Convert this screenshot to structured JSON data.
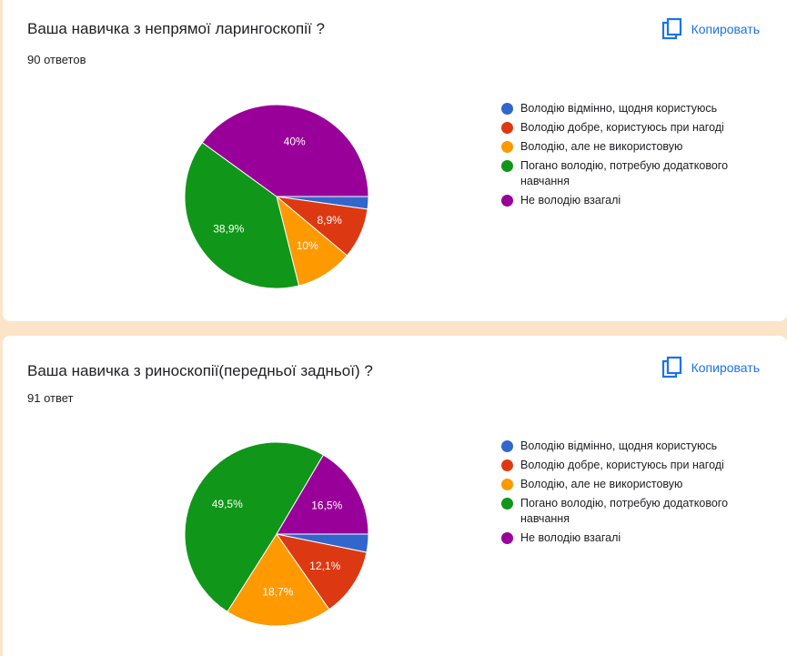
{
  "copy_label": "Копировать",
  "cards": [
    {
      "title": "Ваша навичка з непрямої ларингоскопії ?",
      "responses": "90 ответов"
    },
    {
      "title": "Ваша навичка з риноскопії(передньої задньої) ?",
      "responses": "91 ответ"
    }
  ],
  "chart_data": [
    {
      "type": "pie",
      "categories": [
        "Володію відмінно, щодня користуюсь",
        "Володію добре, користуюсь при нагоді",
        "Володію, але не використовую",
        "Погано володію, потребую додаткового навчання",
        "Не володію взагалі"
      ],
      "values": [
        2.2,
        8.9,
        10,
        38.9,
        40
      ],
      "data_labels": [
        "",
        "8,9%",
        "10%",
        "38,9%",
        "40%"
      ],
      "colors": [
        "#3366cc",
        "#dc3912",
        "#ff9900",
        "#109618",
        "#990099"
      ],
      "legend_position": "right"
    },
    {
      "type": "pie",
      "categories": [
        "Володію відмінно, щодня користуюсь",
        "Володію добре, користуюсь при нагоді",
        "Володію, але не використовую",
        "Погано володію, потребую додаткового навчання",
        "Не володію взагалі"
      ],
      "values": [
        3.2,
        12.1,
        18.7,
        49.5,
        16.5
      ],
      "data_labels": [
        "",
        "12,1%",
        "18,7%",
        "49,5%",
        "16,5%"
      ],
      "colors": [
        "#3366cc",
        "#dc3912",
        "#ff9900",
        "#109618",
        "#990099"
      ],
      "legend_position": "right"
    }
  ]
}
